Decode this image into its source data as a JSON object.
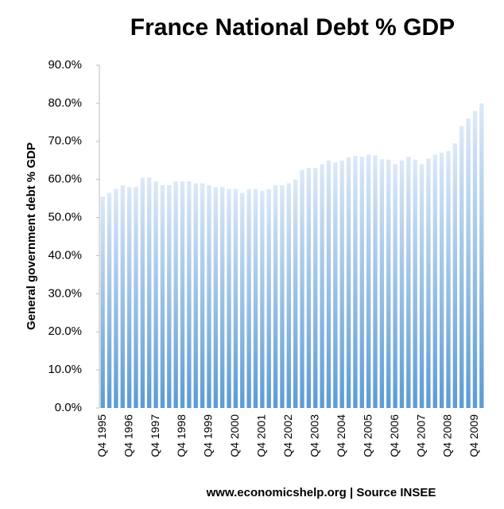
{
  "chart_data": {
    "type": "bar",
    "title": "France National Debt % GDP",
    "y_label": "General government debt % GDP",
    "x_label": "www.economicshelp.org | Source INSEE",
    "color": "#5b9bd5",
    "categories": [
      "Q4 1995",
      null,
      null,
      null,
      "Q4 1996",
      null,
      null,
      null,
      "Q4 1997",
      null,
      null,
      null,
      "Q4 1998",
      null,
      null,
      null,
      "Q4 1999",
      null,
      null,
      null,
      "Q4 2000",
      null,
      null,
      null,
      "Q4 2001",
      null,
      null,
      null,
      "Q4 2002",
      null,
      null,
      null,
      "Q4 2003",
      null,
      null,
      null,
      "Q4 2004",
      null,
      null,
      null,
      "Q4 2005",
      null,
      null,
      null,
      "Q4 2006",
      null,
      null,
      null,
      "Q4 2007",
      null,
      null,
      null,
      "Q4 2008",
      null,
      null,
      null,
      "Q4 2009",
      null
    ],
    "values": [
      55.5,
      56.5,
      57.5,
      58.5,
      58,
      58,
      60.5,
      60.5,
      59.5,
      58.5,
      58.5,
      59.5,
      59.5,
      59.5,
      59,
      59,
      58.5,
      58,
      58,
      57.5,
      57.5,
      56.5,
      57.5,
      57.5,
      57,
      57.5,
      58.5,
      58.5,
      59,
      60,
      62.5,
      63,
      63,
      64,
      65,
      64.5,
      65,
      65.8,
      66.2,
      66,
      66.5,
      66.3,
      65.3,
      65.2,
      64,
      65,
      66,
      65.2,
      64,
      65.5,
      66.5,
      67,
      67.5,
      69.5,
      74,
      76,
      78,
      80
    ],
    "ylim": [
      0,
      90
    ],
    "yticks": [
      {
        "value": 0,
        "label": "0.0%"
      },
      {
        "value": 10,
        "label": "10.0%"
      },
      {
        "value": 20,
        "label": "20.0%"
      },
      {
        "value": 30,
        "label": "30.0%"
      },
      {
        "value": 40,
        "label": "40.0%"
      },
      {
        "value": 50,
        "label": "50.0%"
      },
      {
        "value": 60,
        "label": "60.0%"
      },
      {
        "value": 70,
        "label": "70.0%"
      },
      {
        "value": 80,
        "label": "80.0%"
      },
      {
        "value": 90,
        "label": "90.0%"
      }
    ],
    "grid": false
  }
}
